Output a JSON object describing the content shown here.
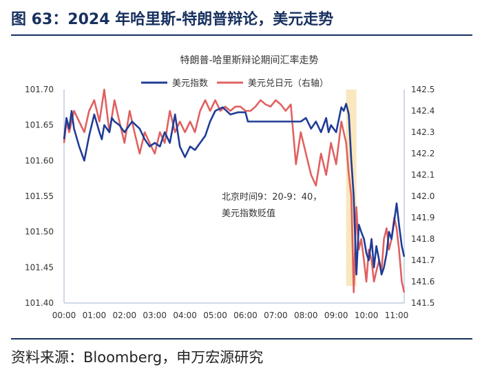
{
  "figure_title": "图 63：2024 年哈里斯-特朗普辩论，美元走势",
  "source": "资料来源：Bloomberg，申万宏源研究",
  "colors": {
    "title": "#17305f",
    "dxy": "#1f3c96",
    "usdjpy": "#e06060",
    "highlight": "#f9e7bd",
    "axis": "#9fb3d6"
  },
  "chart_data": {
    "type": "line",
    "title": "特朗普-哈里斯辩论期间汇率走势",
    "xlabel": "",
    "ylabel_left": "",
    "ylabel_right": "",
    "x_ticks": [
      "00:00",
      "01:00",
      "02:00",
      "03:00",
      "04:00",
      "05:00",
      "06:00",
      "07:00",
      "08:00",
      "09:00",
      "10:00",
      "11:00"
    ],
    "x_range_hours": [
      0,
      11.25
    ],
    "ylim_left": [
      101.4,
      101.7
    ],
    "yticks_left": [
      "101.70",
      "101.65",
      "101.60",
      "101.55",
      "101.50",
      "101.45",
      "101.40"
    ],
    "ylim_right": [
      141.5,
      142.5
    ],
    "yticks_right": [
      "142.5",
      "142.4",
      "142.3",
      "142.2",
      "142.1",
      "142.0",
      "141.9",
      "141.8",
      "141.7",
      "141.6",
      "141.5"
    ],
    "highlight_hours": [
      9.33,
      9.67
    ],
    "annotation": [
      "北京时间9：20-9：40，",
      "美元指数贬值"
    ],
    "series": [
      {
        "name": "美元指数",
        "axis": "left",
        "x": [
          0,
          0.08,
          0.17,
          0.25,
          0.33,
          0.5,
          0.67,
          0.83,
          1.0,
          1.17,
          1.25,
          1.33,
          1.5,
          1.58,
          1.67,
          1.83,
          2.0,
          2.25,
          2.5,
          2.67,
          2.83,
          3.0,
          3.17,
          3.33,
          3.5,
          3.67,
          3.83,
          4.0,
          4.17,
          4.33,
          4.5,
          4.67,
          4.83,
          5.0,
          5.25,
          5.5,
          5.75,
          6.0,
          6.08,
          6.25,
          6.5,
          7.0,
          7.5,
          7.83,
          8.0,
          8.17,
          8.33,
          8.5,
          8.67,
          8.75,
          8.83,
          9.0,
          9.17,
          9.25,
          9.33,
          9.42,
          9.5,
          9.58,
          9.67,
          9.75,
          9.83,
          9.92,
          10.0,
          10.08,
          10.17,
          10.25,
          10.33,
          10.42,
          10.5,
          10.58,
          10.67,
          10.75,
          10.83,
          10.92,
          11.0,
          11.08,
          11.17,
          11.25
        ],
        "values": [
          101.63,
          101.66,
          101.645,
          101.67,
          101.645,
          101.62,
          101.6,
          101.635,
          101.665,
          101.64,
          101.63,
          101.65,
          101.64,
          101.66,
          101.655,
          101.65,
          101.64,
          101.655,
          101.645,
          101.63,
          101.62,
          101.625,
          101.62,
          101.64,
          101.625,
          101.665,
          101.62,
          101.605,
          101.62,
          101.615,
          101.625,
          101.635,
          101.655,
          101.67,
          101.675,
          101.665,
          101.668,
          101.668,
          101.655,
          101.655,
          101.655,
          101.655,
          101.655,
          101.655,
          101.66,
          101.645,
          101.655,
          101.64,
          101.66,
          101.64,
          101.65,
          101.64,
          101.675,
          101.67,
          101.68,
          101.665,
          101.6,
          101.55,
          101.44,
          101.51,
          101.5,
          101.49,
          101.47,
          101.46,
          101.49,
          101.45,
          101.48,
          101.46,
          101.44,
          101.45,
          101.47,
          101.5,
          101.49,
          101.515,
          101.54,
          101.51,
          101.48,
          101.465
        ]
      },
      {
        "name": "美元兑日元（右轴）",
        "axis": "right",
        "x": [
          0,
          0.08,
          0.17,
          0.33,
          0.5,
          0.67,
          0.83,
          1.0,
          1.17,
          1.33,
          1.5,
          1.67,
          1.83,
          2.0,
          2.17,
          2.33,
          2.5,
          2.67,
          2.83,
          3.0,
          3.17,
          3.33,
          3.5,
          3.67,
          3.83,
          4.0,
          4.17,
          4.33,
          4.5,
          4.67,
          4.83,
          5.0,
          5.17,
          5.33,
          5.5,
          5.67,
          5.83,
          6.0,
          6.17,
          6.33,
          6.5,
          6.67,
          6.83,
          7.0,
          7.17,
          7.33,
          7.5,
          7.67,
          7.83,
          8.0,
          8.17,
          8.33,
          8.5,
          8.67,
          8.83,
          9.0,
          9.17,
          9.25,
          9.33,
          9.42,
          9.5,
          9.58,
          9.67,
          9.75,
          9.83,
          9.92,
          10.0,
          10.08,
          10.17,
          10.25,
          10.33,
          10.42,
          10.5,
          10.58,
          10.67,
          10.75,
          10.83,
          10.92,
          11.0,
          11.08,
          11.17,
          11.25
        ],
        "values": [
          142.25,
          142.35,
          142.3,
          142.4,
          142.35,
          142.3,
          142.4,
          142.45,
          142.35,
          142.5,
          142.3,
          142.45,
          142.35,
          142.25,
          142.4,
          142.3,
          142.2,
          142.3,
          142.25,
          142.2,
          142.3,
          142.25,
          142.4,
          142.3,
          142.35,
          142.3,
          142.35,
          142.3,
          142.4,
          142.45,
          142.4,
          142.45,
          142.4,
          142.42,
          142.4,
          142.42,
          142.42,
          142.4,
          142.4,
          142.42,
          142.45,
          142.43,
          142.42,
          142.45,
          142.43,
          142.4,
          142.43,
          142.15,
          142.3,
          142.2,
          142.1,
          142.05,
          142.2,
          142.1,
          142.25,
          142.15,
          142.35,
          142.3,
          142.25,
          142.1,
          142.0,
          141.55,
          141.95,
          141.75,
          141.8,
          141.7,
          141.6,
          141.75,
          141.7,
          141.6,
          141.65,
          141.7,
          141.65,
          141.8,
          141.85,
          141.75,
          141.8,
          141.9,
          141.85,
          141.75,
          141.6,
          141.55
        ]
      }
    ]
  }
}
